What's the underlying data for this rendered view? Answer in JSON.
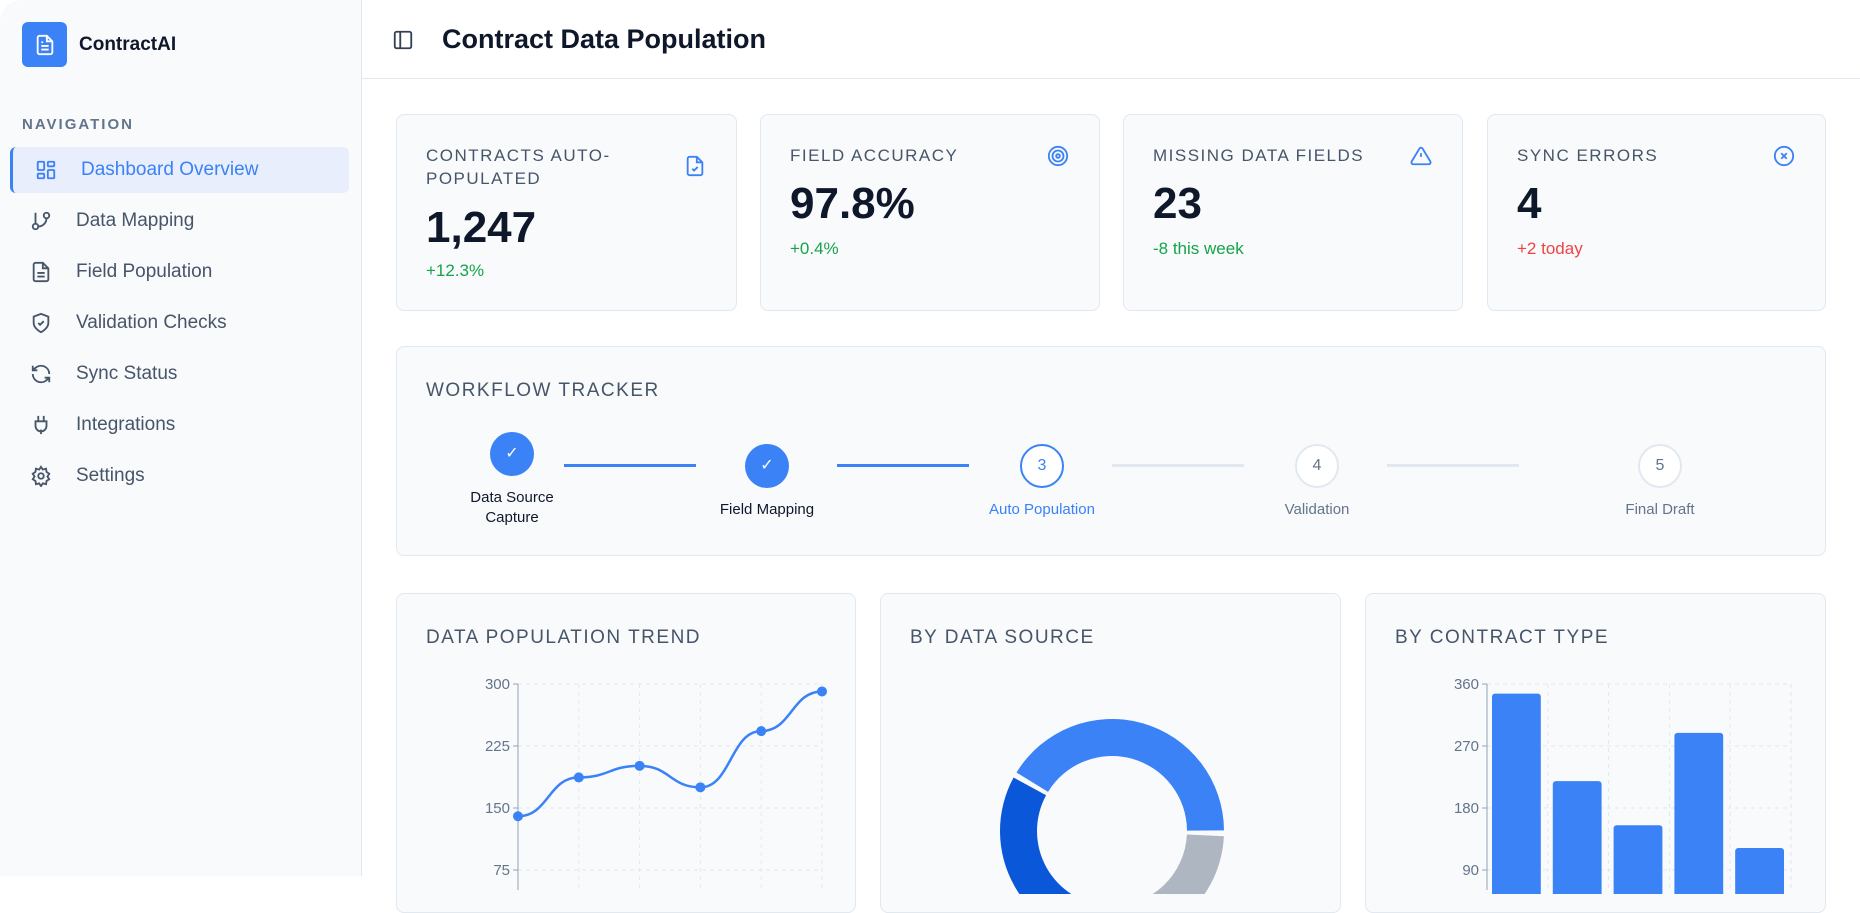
{
  "app": {
    "name": "ContractAI",
    "nav_heading": "NAVIGATION"
  },
  "sidebar": {
    "items": [
      {
        "label": "Dashboard Overview",
        "icon": "dashboard-icon",
        "active": true
      },
      {
        "label": "Data Mapping",
        "icon": "git-branch-icon"
      },
      {
        "label": "Field Population",
        "icon": "file-text-icon"
      },
      {
        "label": "Validation Checks",
        "icon": "shield-check-icon"
      },
      {
        "label": "Sync Status",
        "icon": "refresh-icon"
      },
      {
        "label": "Integrations",
        "icon": "plug-icon"
      },
      {
        "label": "Settings",
        "icon": "gear-icon"
      }
    ]
  },
  "header": {
    "title": "Contract Data Population"
  },
  "kpis": [
    {
      "label": "CONTRACTS AUTO-POPULATED",
      "value": "1,247",
      "delta": "+12.3%",
      "delta_color": "#16a34a",
      "icon": "file-check-icon"
    },
    {
      "label": "FIELD ACCURACY",
      "value": "97.8%",
      "delta": "+0.4%",
      "delta_color": "#16a34a",
      "icon": "target-icon"
    },
    {
      "label": "MISSING DATA FIELDS",
      "value": "23",
      "delta": "-8 this week",
      "delta_color": "#16a34a",
      "icon": "warning-icon"
    },
    {
      "label": "SYNC ERRORS",
      "value": "4",
      "delta": "+2 today",
      "delta_color": "#ef4444",
      "icon": "x-circle-icon"
    }
  ],
  "workflow": {
    "title": "WORKFLOW TRACKER",
    "steps": [
      {
        "num": "1",
        "label": "Data Source Capture",
        "status": "done"
      },
      {
        "num": "2",
        "label": "Field Mapping",
        "status": "done"
      },
      {
        "num": "3",
        "label": "Auto Population",
        "status": "current"
      },
      {
        "num": "4",
        "label": "Validation",
        "status": "pending"
      },
      {
        "num": "5",
        "label": "Final Draft",
        "status": "pending"
      }
    ]
  },
  "colors": {
    "accent": "#3b82f6",
    "dark_blue": "#0b57d9",
    "gray": "#aeb6c1"
  },
  "chart_data": [
    {
      "type": "line",
      "title": "DATA POPULATION TREND",
      "y": [
        140,
        187,
        201,
        175,
        243,
        291
      ],
      "yticks": [
        "300",
        "225",
        "150",
        "75"
      ],
      "ylim": [
        75,
        300
      ],
      "grid": true
    },
    {
      "type": "pie",
      "title": "BY DATA SOURCE",
      "values": [
        42,
        25,
        33
      ],
      "colors": [
        "#3b82f6",
        "#aeb6c1",
        "#0b57d9"
      ]
    },
    {
      "type": "bar",
      "title": "BY CONTRACT TYPE",
      "values": [
        346,
        219,
        155,
        289,
        122
      ],
      "yticks": [
        "360",
        "270",
        "180",
        "90"
      ],
      "ylim": [
        90,
        360
      ],
      "grid": true
    }
  ]
}
